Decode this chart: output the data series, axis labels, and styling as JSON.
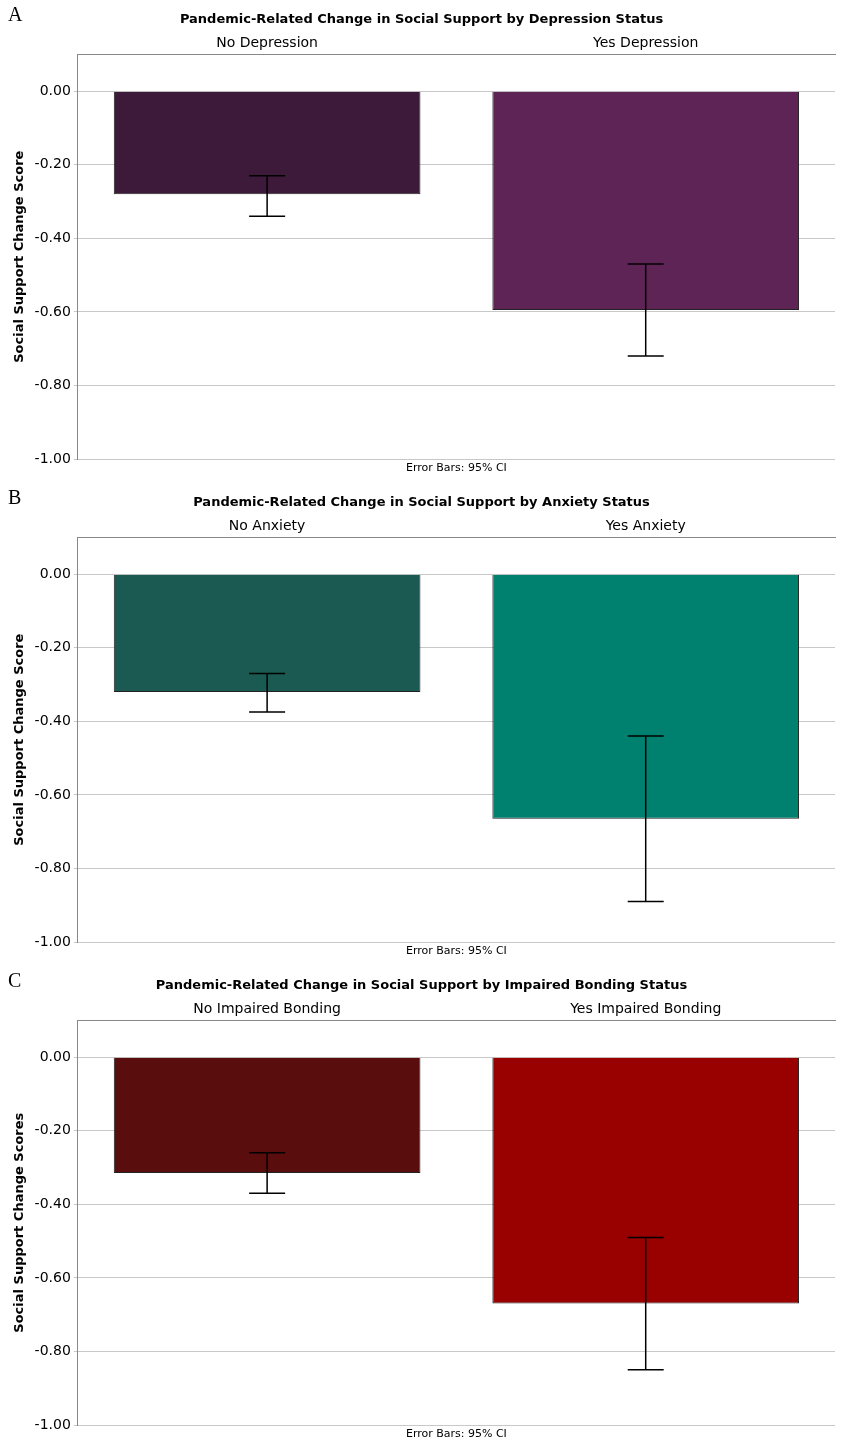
{
  "chart_data": [
    {
      "type": "bar",
      "title": "Pandemic-Related Change in Social Support by Depression Status",
      "ylabel": "Social Support Change Score",
      "categories": [
        "No Depression",
        "Yes Depression"
      ],
      "values": [
        -0.28,
        -0.595
      ],
      "colors": [
        "#3d1a3a",
        "#5e2455"
      ],
      "errors": [
        [
          -0.34,
          -0.23
        ],
        [
          -0.72,
          -0.47
        ]
      ],
      "ylim": [
        -1,
        0.1
      ],
      "yticks": [
        {
          "value": -1,
          "label": "-1.00"
        },
        {
          "value": -0.8,
          "label": "-0.80"
        },
        {
          "value": -0.6,
          "label": "-0.60"
        },
        {
          "value": -0.4,
          "label": "-0.40"
        },
        {
          "value": -0.2,
          "label": "-0.20"
        },
        {
          "value": 0,
          "label": "0.00"
        }
      ],
      "grid": "y",
      "annotations": [
        "A",
        "Error Bars: 95% CI"
      ]
    },
    {
      "type": "bar",
      "title": "Pandemic-Related Change in Social Support by Anxiety Status",
      "ylabel": "Social Support Change Score",
      "categories": [
        "No Anxiety",
        "Yes Anxiety"
      ],
      "values": [
        -0.32,
        -0.665
      ],
      "colors": [
        "#1a5a52",
        "#008170"
      ],
      "errors": [
        [
          -0.375,
          -0.27
        ],
        [
          -0.89,
          -0.44
        ]
      ],
      "ylim": [
        -1,
        0.1
      ],
      "yticks": [
        {
          "value": -1,
          "label": "-1.00"
        },
        {
          "value": -0.8,
          "label": "-0.80"
        },
        {
          "value": -0.6,
          "label": "-0.60"
        },
        {
          "value": -0.4,
          "label": "-0.40"
        },
        {
          "value": -0.2,
          "label": "-0.20"
        },
        {
          "value": 0,
          "label": "0.00"
        }
      ],
      "grid": "y",
      "annotations": [
        "B",
        "Error Bars: 95% CI"
      ]
    },
    {
      "type": "bar",
      "title": "Pandemic-Related Change in Social Support by Impaired Bonding Status",
      "ylabel": "Social Support Change Scores",
      "categories": [
        "No Impaired Bonding",
        "Yes Impaired Bonding"
      ],
      "values": [
        -0.315,
        -0.67
      ],
      "colors": [
        "#5a0d0d",
        "#990000"
      ],
      "errors": [
        [
          -0.37,
          -0.26
        ],
        [
          -0.85,
          -0.49
        ]
      ],
      "ylim": [
        -1,
        0.1
      ],
      "yticks": [
        {
          "value": -1,
          "label": "-1.00"
        },
        {
          "value": -0.8,
          "label": "-0.80"
        },
        {
          "value": -0.6,
          "label": "-0.60"
        },
        {
          "value": -0.4,
          "label": "-0.40"
        },
        {
          "value": -0.2,
          "label": "-0.20"
        },
        {
          "value": 0,
          "label": "0.00"
        }
      ],
      "grid": "y",
      "annotations": [
        "C",
        "Error Bars: 95% CI"
      ]
    }
  ]
}
